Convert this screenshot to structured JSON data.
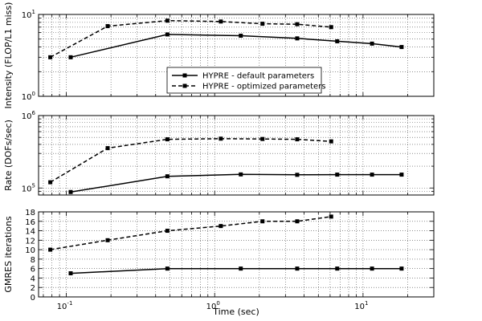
{
  "chart_data": [
    {
      "type": "line",
      "xscale": "log",
      "yscale": "log",
      "xlim": [
        0.065,
        30
      ],
      "ylim": [
        1,
        10
      ],
      "ylabel": "Intensity (FLOP/L1 miss)",
      "xlabel": "",
      "yticks": [
        {
          "base": "10",
          "exp": "0",
          "value": 1
        },
        {
          "base": "10",
          "exp": "1",
          "value": 10
        }
      ],
      "grid": true,
      "legend": {
        "placement": "center",
        "entries": [
          {
            "label": "HYPRE - default parameters",
            "style": "solid"
          },
          {
            "label": "HYPRE - optimized parameters",
            "style": "dashed"
          }
        ]
      },
      "series": [
        {
          "name": "HYPRE - default parameters",
          "style": "solid",
          "color": "#000000",
          "x": [
            0.107,
            0.48,
            1.5,
            3.6,
            6.7,
            11.5,
            18.2
          ],
          "y": [
            3.0,
            5.7,
            5.5,
            5.1,
            4.7,
            4.4,
            4.0
          ]
        },
        {
          "name": "HYPRE - optimized parameters",
          "style": "dashed",
          "color": "#000000",
          "x": [
            0.078,
            0.19,
            0.48,
            1.1,
            2.1,
            3.6,
            6.1
          ],
          "y": [
            3.0,
            7.2,
            8.4,
            8.2,
            7.7,
            7.6,
            7.0
          ]
        }
      ]
    },
    {
      "type": "line",
      "xscale": "log",
      "yscale": "log",
      "xlim": [
        0.065,
        30
      ],
      "ylim": [
        80000,
        1000000
      ],
      "ylabel": "Rate (DOFs/sec)",
      "xlabel": "",
      "yticks": [
        {
          "base": "10",
          "exp": "5",
          "value": 100000
        },
        {
          "base": "10",
          "exp": "6",
          "value": 1000000
        }
      ],
      "grid": true,
      "series": [
        {
          "name": "HYPRE - default parameters",
          "style": "solid",
          "color": "#000000",
          "x": [
            0.107,
            0.48,
            1.5,
            3.6,
            6.7,
            11.5,
            18.2
          ],
          "y": [
            88000,
            145000,
            154000,
            152000,
            153000,
            153000,
            153000
          ]
        },
        {
          "name": "HYPRE - optimized parameters",
          "style": "dashed",
          "color": "#000000",
          "x": [
            0.078,
            0.19,
            0.48,
            1.1,
            2.1,
            3.6,
            6.1
          ],
          "y": [
            120000,
            355000,
            470000,
            480000,
            475000,
            470000,
            440000
          ]
        }
      ]
    },
    {
      "type": "line",
      "xscale": "log",
      "yscale": "linear",
      "xlim": [
        0.065,
        30
      ],
      "ylim": [
        0,
        18
      ],
      "ylabel": "GMRES iterations",
      "xlabel": "Time (sec)",
      "yticks": [
        {
          "label": "0",
          "value": 0
        },
        {
          "label": "2",
          "value": 2
        },
        {
          "label": "4",
          "value": 4
        },
        {
          "label": "6",
          "value": 6
        },
        {
          "label": "8",
          "value": 8
        },
        {
          "label": "10",
          "value": 10
        },
        {
          "label": "12",
          "value": 12
        },
        {
          "label": "14",
          "value": 14
        },
        {
          "label": "16",
          "value": 16
        },
        {
          "label": "18",
          "value": 18
        }
      ],
      "xticks": [
        {
          "base": "10",
          "exp": "-1",
          "value": 0.1
        },
        {
          "base": "10",
          "exp": "0",
          "value": 1
        },
        {
          "base": "10",
          "exp": "1",
          "value": 10
        }
      ],
      "grid": true,
      "series": [
        {
          "name": "HYPRE - default parameters",
          "style": "solid",
          "color": "#000000",
          "x": [
            0.107,
            0.48,
            1.5,
            3.6,
            6.7,
            11.5,
            18.2
          ],
          "y": [
            5,
            6,
            6,
            6,
            6,
            6,
            6
          ]
        },
        {
          "name": "HYPRE - optimized parameters",
          "style": "dashed",
          "color": "#000000",
          "x": [
            0.078,
            0.19,
            0.48,
            1.1,
            2.1,
            3.6,
            6.1
          ],
          "y": [
            10,
            12,
            14,
            15,
            16,
            16,
            17
          ]
        }
      ]
    }
  ]
}
